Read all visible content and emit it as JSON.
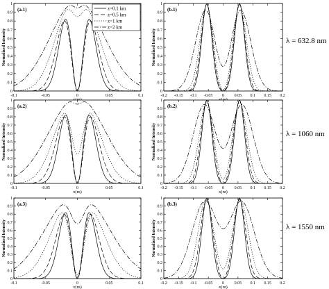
{
  "wavelength_labels": [
    "λ = 632.8 nm",
    "λ = 1060 nm",
    "λ = 1550 nm"
  ],
  "legend": {
    "entries": [
      {
        "label": "z=0.1 km",
        "dash": "solid"
      },
      {
        "label": "z=0.5 km",
        "dash": "dashed"
      },
      {
        "label": "z=1 km",
        "dash": "dotted"
      },
      {
        "label": "z=2 km",
        "dash": "dashdot"
      }
    ]
  },
  "chart_data": [
    {
      "id": "a.1",
      "panel_label": "(a.1)",
      "type": "line",
      "xlabel": "x(m)",
      "ylabel": "Normalized Intensity",
      "xlim": [
        -0.1,
        0.1
      ],
      "ylim": [
        0,
        1
      ],
      "xticks": [
        -0.1,
        -0.05,
        0,
        0.05,
        0.1
      ],
      "xtick_labels": [
        "-0.1",
        "-0.05",
        "0",
        "0.05",
        "0.1"
      ],
      "yticks": [
        0,
        0.1,
        0.2,
        0.3,
        0.4,
        0.5,
        0.6,
        0.7,
        0.8,
        0.9,
        1
      ],
      "ytick_labels": [
        "0",
        "0.1",
        "0.2",
        "0.3",
        "0.4",
        "0.5",
        "0.6",
        "0.7",
        "0.8",
        "0.9",
        "1"
      ],
      "series": [
        {
          "name": "z=0.1 km",
          "peak_x": 0.015,
          "width": 0.013,
          "center_dip": 0.0
        },
        {
          "name": "z=0.5 km",
          "peak_x": 0.016,
          "width": 0.016,
          "center_dip": 0.0
        },
        {
          "name": "z=1 km",
          "peak_x": 0.016,
          "width": 0.024,
          "center_dip": 0.85
        },
        {
          "name": "z=2 km",
          "peak_x": 0.012,
          "width": 0.04,
          "center_dip": 0.95
        }
      ]
    },
    {
      "id": "b.1",
      "panel_label": "(b.1)",
      "type": "line",
      "xlabel": "x(m)",
      "ylabel": "Normalized Intensity",
      "xlim": [
        -0.2,
        0.2
      ],
      "ylim": [
        0,
        1
      ],
      "xticks": [
        -0.2,
        -0.15,
        -0.1,
        -0.05,
        0,
        0.05,
        0.1,
        0.15,
        0.2
      ],
      "xtick_labels": [
        "-0.2",
        "-0.15",
        "-0.1",
        "-0.05",
        "0",
        "0.05",
        "0.1",
        "0.15",
        "0.2"
      ],
      "yticks": [
        0,
        0.1,
        0.2,
        0.3,
        0.4,
        0.5,
        0.6,
        0.7,
        0.8,
        0.9,
        1
      ],
      "ytick_labels": [
        "0",
        "0.1",
        "0.2",
        "0.3",
        "0.4",
        "0.5",
        "0.6",
        "0.7",
        "0.8",
        "0.9",
        "1"
      ],
      "series": [
        {
          "name": "z=0.1 km",
          "peak_x": 0.055,
          "width": 0.017,
          "center_dip": 0.0
        },
        {
          "name": "z=0.5 km",
          "peak_x": 0.055,
          "width": 0.019,
          "center_dip": 0.0
        },
        {
          "name": "z=1 km",
          "peak_x": 0.055,
          "width": 0.023,
          "center_dip": 0.01
        },
        {
          "name": "z=2 km",
          "peak_x": 0.055,
          "width": 0.036,
          "center_dip": 0.28
        }
      ]
    },
    {
      "id": "a.2",
      "panel_label": "(a.2)",
      "type": "line",
      "xlabel": "x(m)",
      "ylabel": "Normalized Intensity",
      "xlim": [
        -0.1,
        0.1
      ],
      "ylim": [
        0,
        1
      ],
      "xticks": [
        -0.1,
        -0.05,
        0,
        0.05,
        0.1
      ],
      "xtick_labels": [
        "-0.1",
        "-0.05",
        "0",
        "0.05",
        "0.1"
      ],
      "yticks": [
        0,
        0.1,
        0.2,
        0.3,
        0.4,
        0.5,
        0.6,
        0.7,
        0.8,
        0.9,
        1
      ],
      "ytick_labels": [
        "0",
        "0.1",
        "0.2",
        "0.3",
        "0.4",
        "0.5",
        "0.6",
        "0.7",
        "0.8",
        "0.9",
        "1"
      ],
      "series": [
        {
          "name": "z=0.1 km",
          "peak_x": 0.015,
          "width": 0.013,
          "center_dip": 0.0
        },
        {
          "name": "z=0.5 km",
          "peak_x": 0.016,
          "width": 0.017,
          "center_dip": 0.0
        },
        {
          "name": "z=1 km",
          "peak_x": 0.016,
          "width": 0.025,
          "center_dip": 0.35
        },
        {
          "name": "z=2 km",
          "peak_x": 0.012,
          "width": 0.042,
          "center_dip": 0.95
        }
      ]
    },
    {
      "id": "b.2",
      "panel_label": "(b.2)",
      "type": "line",
      "xlabel": "x(m)",
      "ylabel": "Normalized Intensity",
      "xlim": [
        -0.2,
        0.2
      ],
      "ylim": [
        0,
        1
      ],
      "xticks": [
        -0.2,
        -0.15,
        -0.1,
        -0.05,
        0,
        0.05,
        0.1,
        0.15,
        0.2
      ],
      "xtick_labels": [
        "-0.2",
        "-0.15",
        "-0.1",
        "-0.05",
        "0",
        "0.05",
        "0.1",
        "0.15",
        "0.2"
      ],
      "yticks": [
        0,
        0.1,
        0.2,
        0.3,
        0.4,
        0.5,
        0.6,
        0.7,
        0.8,
        0.9,
        1
      ],
      "ytick_labels": [
        "0",
        "0.1",
        "0.2",
        "0.3",
        "0.4",
        "0.5",
        "0.6",
        "0.7",
        "0.8",
        "0.9",
        "1"
      ],
      "series": [
        {
          "name": "z=0.1 km",
          "peak_x": 0.055,
          "width": 0.017,
          "center_dip": 0.0
        },
        {
          "name": "z=0.5 km",
          "peak_x": 0.055,
          "width": 0.02,
          "center_dip": 0.0
        },
        {
          "name": "z=1 km",
          "peak_x": 0.055,
          "width": 0.025,
          "center_dip": 0.05
        },
        {
          "name": "z=2 km",
          "peak_x": 0.06,
          "width": 0.04,
          "center_dip": 0.42
        }
      ]
    },
    {
      "id": "a.3",
      "panel_label": "(a.3)",
      "type": "line",
      "xlabel": "x(m)",
      "ylabel": "Normalized Intensity",
      "xlim": [
        -0.1,
        0.1
      ],
      "ylim": [
        0,
        1
      ],
      "xticks": [
        -0.1,
        -0.05,
        0,
        0.05,
        0.1
      ],
      "xtick_labels": [
        "-0.1",
        "-0.05",
        "0",
        "0.05",
        "0.1"
      ],
      "yticks": [
        0,
        0.1,
        0.2,
        0.3,
        0.4,
        0.5,
        0.6,
        0.7,
        0.8,
        0.9,
        1
      ],
      "ytick_labels": [
        "0",
        "0.1",
        "0.2",
        "0.3",
        "0.4",
        "0.5",
        "0.6",
        "0.7",
        "0.8",
        "0.9",
        "1"
      ],
      "series": [
        {
          "name": "z=0.1 km",
          "peak_x": 0.015,
          "width": 0.013,
          "center_dip": 0.0
        },
        {
          "name": "z=0.5 km",
          "peak_x": 0.016,
          "width": 0.017,
          "center_dip": 0.0
        },
        {
          "name": "z=1 km",
          "peak_x": 0.018,
          "width": 0.028,
          "center_dip": 0.05
        },
        {
          "name": "z=2 km",
          "peak_x": 0.018,
          "width": 0.044,
          "center_dip": 0.68
        }
      ]
    },
    {
      "id": "b.3",
      "panel_label": "(b.3)",
      "type": "line",
      "xlabel": "x(m)",
      "ylabel": "Normalized Intensity",
      "xlim": [
        -0.2,
        0.2
      ],
      "ylim": [
        0,
        1
      ],
      "xticks": [
        -0.2,
        -0.15,
        -0.1,
        -0.05,
        0,
        0.05,
        0.1,
        0.15,
        0.2
      ],
      "xtick_labels": [
        "-0.2",
        "-0.15",
        "-0.1",
        "-0.05",
        "0",
        "0.05",
        "0.1",
        "0.15",
        "0.2"
      ],
      "yticks": [
        0,
        0.1,
        0.2,
        0.3,
        0.4,
        0.5,
        0.6,
        0.7,
        0.8,
        0.9,
        1
      ],
      "ytick_labels": [
        "0",
        "0.1",
        "0.2",
        "0.3",
        "0.4",
        "0.5",
        "0.6",
        "0.7",
        "0.8",
        "0.9",
        "1"
      ],
      "series": [
        {
          "name": "z=0.1 km",
          "peak_x": 0.055,
          "width": 0.017,
          "center_dip": 0.0
        },
        {
          "name": "z=0.5 km",
          "peak_x": 0.055,
          "width": 0.021,
          "center_dip": 0.0
        },
        {
          "name": "z=1 km",
          "peak_x": 0.057,
          "width": 0.027,
          "center_dip": 0.12
        },
        {
          "name": "z=2 km",
          "peak_x": 0.06,
          "width": 0.044,
          "center_dip": 0.62
        }
      ]
    }
  ]
}
